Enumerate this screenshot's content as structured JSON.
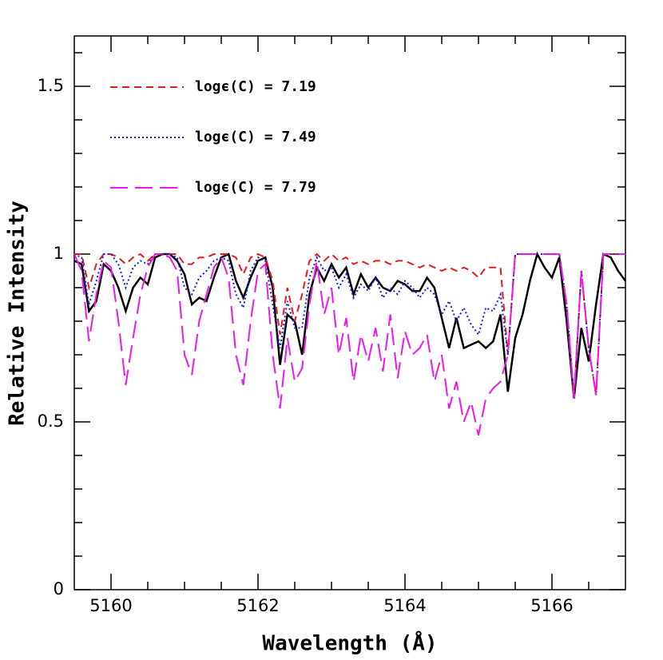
{
  "chart_data": {
    "type": "line",
    "xlabel": "Wavelength (Å)",
    "ylabel": "Relative Intensity",
    "xlim": [
      5159.5,
      5167.0
    ],
    "ylim": [
      0,
      1.65
    ],
    "xticks": [
      5160,
      5162,
      5164,
      5166
    ],
    "yticks": [
      0,
      0.5,
      1,
      1.5
    ],
    "xminorticks": [
      5160.5,
      5161,
      5161.5,
      5162.5,
      5163,
      5163.5,
      5164.5,
      5165,
      5165.5,
      5166.5
    ],
    "yminorticks": [
      0.1,
      0.2,
      0.3,
      0.4,
      0.6,
      0.7,
      0.8,
      0.9,
      1.1,
      1.2,
      1.3,
      1.4,
      1.6
    ],
    "grid": false,
    "legend": "upper left",
    "x": [
      5159.5,
      5159.6,
      5159.7,
      5159.8,
      5159.9,
      5160.0,
      5160.1,
      5160.2,
      5160.3,
      5160.4,
      5160.5,
      5160.6,
      5160.7,
      5160.8,
      5160.9,
      5161.0,
      5161.1,
      5161.2,
      5161.3,
      5161.4,
      5161.5,
      5161.6,
      5161.7,
      5161.8,
      5161.9,
      5162.0,
      5162.1,
      5162.2,
      5162.3,
      5162.4,
      5162.5,
      5162.6,
      5162.7,
      5162.8,
      5162.9,
      5163.0,
      5163.1,
      5163.2,
      5163.3,
      5163.4,
      5163.5,
      5163.6,
      5163.7,
      5163.8,
      5163.9,
      5164.0,
      5164.1,
      5164.2,
      5164.3,
      5164.4,
      5164.5,
      5164.6,
      5164.7,
      5164.8,
      5164.9,
      5165.0,
      5165.1,
      5165.2,
      5165.3,
      5165.4,
      5165.5,
      5165.6,
      5165.7,
      5165.8,
      5165.9,
      5166.0,
      5166.1,
      5166.2,
      5166.3,
      5166.4,
      5166.5,
      5166.6,
      5166.7,
      5166.8,
      5166.9,
      5167.0
    ],
    "series": [
      {
        "color": "#000000",
        "dash": "solid",
        "values": [
          0.98,
          0.97,
          0.83,
          0.86,
          0.97,
          0.95,
          0.9,
          0.83,
          0.9,
          0.93,
          0.91,
          0.99,
          1.0,
          1.0,
          0.98,
          0.94,
          0.85,
          0.87,
          0.86,
          0.93,
          0.99,
          1.0,
          0.92,
          0.87,
          0.93,
          0.98,
          0.99,
          0.9,
          0.67,
          0.82,
          0.8,
          0.7,
          0.88,
          0.96,
          0.92,
          0.97,
          0.93,
          0.96,
          0.88,
          0.94,
          0.9,
          0.93,
          0.9,
          0.89,
          0.92,
          0.91,
          0.89,
          0.89,
          0.93,
          0.9,
          0.81,
          0.72,
          0.81,
          0.72,
          0.73,
          0.74,
          0.72,
          0.74,
          0.82,
          0.59,
          0.75,
          0.82,
          0.92,
          1.0,
          0.96,
          0.93,
          0.99,
          0.8,
          0.57,
          0.78,
          0.68,
          0.85,
          1.0,
          0.99,
          0.95,
          0.92
        ]
      },
      {
        "name": "logϵ(C) = 7.19",
        "color": "#e41a1c",
        "dash": "dashed",
        "values": [
          1.0,
          1.0,
          0.9,
          0.97,
          1.0,
          1.0,
          0.99,
          0.97,
          0.99,
          1.0,
          0.98,
          1.0,
          1.0,
          1.0,
          1.0,
          0.97,
          0.97,
          0.99,
          0.99,
          1.0,
          1.0,
          1.0,
          0.99,
          0.94,
          0.99,
          1.0,
          0.99,
          0.92,
          0.76,
          0.9,
          0.8,
          0.88,
          0.98,
          1.0,
          0.98,
          1.0,
          0.98,
          0.99,
          0.97,
          0.98,
          0.97,
          0.98,
          0.98,
          0.97,
          0.98,
          0.98,
          0.97,
          0.96,
          0.97,
          0.96,
          0.95,
          0.96,
          0.95,
          0.96,
          0.95,
          0.93,
          0.96,
          0.96,
          0.96,
          0.7,
          1.0,
          1.0,
          1.0,
          1.0,
          1.0,
          1.0,
          1.0,
          0.85,
          0.57,
          0.95,
          0.72,
          0.58,
          1.0,
          1.0,
          1.0,
          1.0
        ]
      },
      {
        "name": "logϵ(C) = 7.49",
        "color": "#1a1adc",
        "dash": "dotted",
        "values": [
          1.0,
          0.99,
          0.85,
          0.92,
          1.0,
          1.0,
          0.97,
          0.9,
          0.96,
          0.98,
          0.97,
          1.0,
          1.0,
          1.0,
          0.99,
          0.9,
          0.88,
          0.93,
          0.95,
          0.98,
          0.99,
          0.98,
          0.88,
          0.84,
          0.95,
          0.99,
          0.98,
          0.85,
          0.72,
          0.86,
          0.78,
          0.78,
          0.93,
          0.99,
          0.95,
          0.96,
          0.9,
          0.94,
          0.87,
          0.91,
          0.89,
          0.93,
          0.87,
          0.9,
          0.88,
          0.92,
          0.9,
          0.87,
          0.9,
          0.88,
          0.82,
          0.86,
          0.8,
          0.84,
          0.79,
          0.76,
          0.84,
          0.83,
          0.88,
          0.7,
          1.0,
          1.0,
          1.0,
          1.0,
          1.0,
          1.0,
          1.0,
          0.85,
          0.57,
          0.95,
          0.72,
          0.58,
          1.0,
          1.0,
          1.0,
          1.0
        ]
      },
      {
        "name": "logϵ(C) = 7.79",
        "color": "#ee16ee",
        "dash": "longdash",
        "values": [
          1.0,
          0.95,
          0.74,
          0.88,
          0.98,
          0.96,
          0.8,
          0.61,
          0.75,
          0.88,
          0.96,
          1.0,
          1.0,
          0.99,
          0.95,
          0.7,
          0.64,
          0.8,
          0.88,
          0.96,
          0.99,
          0.93,
          0.7,
          0.61,
          0.8,
          0.95,
          0.97,
          0.7,
          0.54,
          0.75,
          0.62,
          0.66,
          0.85,
          0.98,
          0.82,
          0.9,
          0.7,
          0.81,
          0.62,
          0.76,
          0.68,
          0.78,
          0.65,
          0.82,
          0.63,
          0.77,
          0.7,
          0.72,
          0.76,
          0.62,
          0.7,
          0.54,
          0.62,
          0.5,
          0.56,
          0.46,
          0.57,
          0.6,
          0.62,
          0.7,
          1.0,
          1.0,
          1.0,
          1.0,
          1.0,
          1.0,
          1.0,
          0.85,
          0.57,
          0.95,
          0.72,
          0.58,
          1.0,
          1.0,
          1.0,
          1.0
        ]
      }
    ]
  }
}
